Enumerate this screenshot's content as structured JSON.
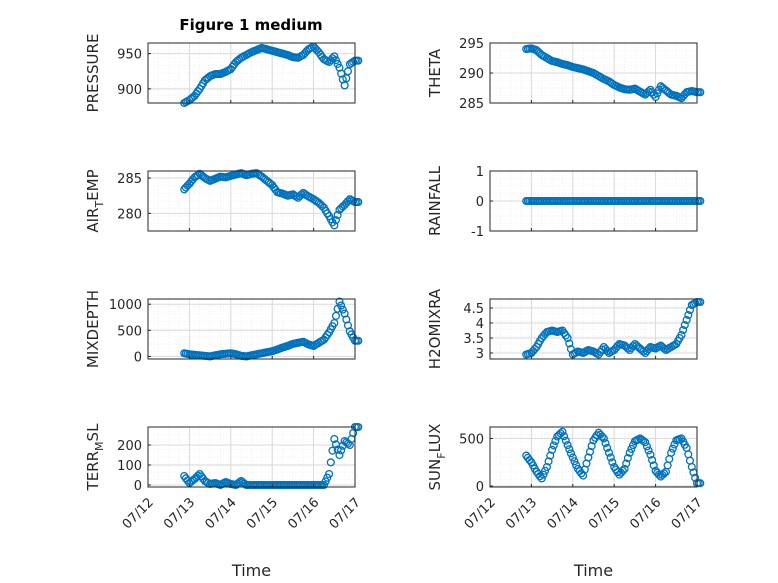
{
  "figure": {
    "title": "Figure 1 medium"
  },
  "colors": {
    "marker": "#0072BD",
    "axis": "#262626",
    "grid": "#d9d9d9",
    "minorgrid": "#ececec"
  },
  "chart_data": [
    {
      "id": "pressure",
      "type": "scatter",
      "marker": "circle-open",
      "title": "Figure 1 medium",
      "xlabel": "",
      "ylabel": "PRESSURE",
      "xlim": [
        "07/12",
        "07/17"
      ],
      "ylim": [
        880,
        965
      ],
      "yticks": [
        900,
        950
      ],
      "xticks": [
        "07/12",
        "07/13",
        "07/14",
        "07/15",
        "07/16",
        "07/17"
      ],
      "x": [
        "07/12 21:00",
        "07/13 00:00",
        "07/13 03:00",
        "07/13 06:00",
        "07/13 09:00",
        "07/13 12:00",
        "07/13 15:00",
        "07/13 18:00",
        "07/13 21:00",
        "07/14 00:00",
        "07/14 03:00",
        "07/14 06:00",
        "07/14 09:00",
        "07/14 12:00",
        "07/14 15:00",
        "07/14 18:00",
        "07/14 21:00",
        "07/15 00:00",
        "07/15 03:00",
        "07/15 06:00",
        "07/15 09:00",
        "07/15 12:00",
        "07/15 15:00",
        "07/15 18:00",
        "07/15 21:00",
        "07/16 00:00",
        "07/16 03:00",
        "07/16 06:00",
        "07/16 09:00",
        "07/16 12:00",
        "07/16 15:00",
        "07/16 18:00",
        "07/16 21:00",
        "07/17 00:00"
      ],
      "y": [
        880,
        884,
        890,
        900,
        912,
        918,
        921,
        921,
        924,
        928,
        938,
        944,
        948,
        952,
        955,
        958,
        956,
        954,
        952,
        950,
        948,
        945,
        944,
        948,
        956,
        960,
        952,
        942,
        938,
        946,
        930,
        905,
        935,
        940
      ]
    },
    {
      "id": "theta",
      "type": "scatter",
      "marker": "circle-open",
      "xlabel": "",
      "ylabel": "THETA",
      "xlim": [
        "07/12",
        "07/17"
      ],
      "ylim": [
        285,
        295
      ],
      "yticks": [
        285,
        290,
        295
      ],
      "xticks": [
        "07/12",
        "07/13",
        "07/14",
        "07/15",
        "07/16",
        "07/17"
      ],
      "x": [
        "07/12 21:00",
        "07/13 00:00",
        "07/13 03:00",
        "07/13 06:00",
        "07/13 09:00",
        "07/13 12:00",
        "07/13 15:00",
        "07/13 18:00",
        "07/13 21:00",
        "07/14 00:00",
        "07/14 03:00",
        "07/14 06:00",
        "07/14 09:00",
        "07/14 12:00",
        "07/14 15:00",
        "07/14 18:00",
        "07/14 21:00",
        "07/15 00:00",
        "07/15 03:00",
        "07/15 06:00",
        "07/15 09:00",
        "07/15 12:00",
        "07/15 15:00",
        "07/15 18:00",
        "07/15 21:00",
        "07/16 00:00",
        "07/16 03:00",
        "07/16 06:00",
        "07/16 09:00",
        "07/16 12:00",
        "07/16 15:00",
        "07/16 18:00",
        "07/16 21:00",
        "07/17 00:00"
      ],
      "y": [
        294,
        294.1,
        293.8,
        293,
        292.5,
        292,
        291.8,
        291.5,
        291.3,
        291,
        290.8,
        290.6,
        290.3,
        290,
        289.5,
        289,
        288.6,
        288,
        287.6,
        287.3,
        287.2,
        287.4,
        286.9,
        286.4,
        287.2,
        286,
        287.8,
        287.1,
        286.4,
        286.2,
        285.8,
        286.8,
        287,
        286.8
      ]
    },
    {
      "id": "airtemp",
      "type": "scatter",
      "marker": "circle-open",
      "xlabel": "",
      "ylabel": "AIR_TEMP",
      "ylabel_parts": {
        "main": "AIR",
        "sub": "T",
        "rest": "EMP"
      },
      "xlim": [
        "07/12",
        "07/17"
      ],
      "ylim": [
        277.5,
        286
      ],
      "yticks": [
        280,
        285
      ],
      "xticks": [
        "07/12",
        "07/13",
        "07/14",
        "07/15",
        "07/16",
        "07/17"
      ],
      "x": [
        "07/12 21:00",
        "07/13 00:00",
        "07/13 03:00",
        "07/13 06:00",
        "07/13 09:00",
        "07/13 12:00",
        "07/13 15:00",
        "07/13 18:00",
        "07/13 21:00",
        "07/14 00:00",
        "07/14 03:00",
        "07/14 06:00",
        "07/14 09:00",
        "07/14 12:00",
        "07/14 15:00",
        "07/14 18:00",
        "07/14 21:00",
        "07/15 00:00",
        "07/15 03:00",
        "07/15 06:00",
        "07/15 09:00",
        "07/15 12:00",
        "07/15 15:00",
        "07/15 18:00",
        "07/15 21:00",
        "07/16 00:00",
        "07/16 03:00",
        "07/16 06:00",
        "07/16 09:00",
        "07/16 12:00",
        "07/16 15:00",
        "07/16 18:00",
        "07/16 21:00",
        "07/17 00:00"
      ],
      "y": [
        283.4,
        284.2,
        285.1,
        285.6,
        285.0,
        284.6,
        284.9,
        285.2,
        285.1,
        285.3,
        285.5,
        285.7,
        285.4,
        285.6,
        285.7,
        285.2,
        284.6,
        284.0,
        283.0,
        282.8,
        282.5,
        282.7,
        282.2,
        282.9,
        282.4,
        282.0,
        281.5,
        280.8,
        279.6,
        278.3,
        280.5,
        281.2,
        282.0,
        281.6
      ]
    },
    {
      "id": "rainfall",
      "type": "scatter",
      "marker": "circle-open",
      "xlabel": "",
      "ylabel": "RAINFALL",
      "xlim": [
        "07/12",
        "07/17"
      ],
      "ylim": [
        -1,
        1
      ],
      "yticks": [
        -1,
        0,
        1
      ],
      "xticks": [
        "07/12",
        "07/13",
        "07/14",
        "07/15",
        "07/16",
        "07/17"
      ],
      "x": [
        "07/12 21:00",
        "07/13 00:00",
        "07/13 03:00",
        "07/13 06:00",
        "07/13 09:00",
        "07/13 12:00",
        "07/13 15:00",
        "07/13 18:00",
        "07/13 21:00",
        "07/14 00:00",
        "07/14 03:00",
        "07/14 06:00",
        "07/14 09:00",
        "07/14 12:00",
        "07/14 15:00",
        "07/14 18:00",
        "07/14 21:00",
        "07/15 00:00",
        "07/15 03:00",
        "07/15 06:00",
        "07/15 09:00",
        "07/15 12:00",
        "07/15 15:00",
        "07/15 18:00",
        "07/15 21:00",
        "07/16 00:00",
        "07/16 03:00",
        "07/16 06:00",
        "07/16 09:00",
        "07/16 12:00",
        "07/16 15:00",
        "07/16 18:00",
        "07/16 21:00",
        "07/17 00:00"
      ],
      "y": [
        0,
        0,
        0,
        0,
        0,
        0,
        0,
        0,
        0,
        0,
        0,
        0,
        0,
        0,
        0,
        0,
        0,
        0,
        0,
        0,
        0,
        0,
        0,
        0,
        0,
        0,
        0,
        0,
        0,
        0,
        0,
        0,
        0,
        0
      ]
    },
    {
      "id": "mixdepth",
      "type": "scatter",
      "marker": "circle-open",
      "xlabel": "",
      "ylabel": "MIXDEPTH",
      "xlim": [
        "07/12",
        "07/17"
      ],
      "ylim": [
        -50,
        1100
      ],
      "yticks": [
        0,
        500,
        1000
      ],
      "xticks": [
        "07/12",
        "07/13",
        "07/14",
        "07/15",
        "07/16",
        "07/17"
      ],
      "x": [
        "07/12 21:00",
        "07/13 00:00",
        "07/13 03:00",
        "07/13 06:00",
        "07/13 09:00",
        "07/13 12:00",
        "07/13 15:00",
        "07/13 18:00",
        "07/13 21:00",
        "07/14 00:00",
        "07/14 03:00",
        "07/14 06:00",
        "07/14 09:00",
        "07/14 12:00",
        "07/14 15:00",
        "07/14 18:00",
        "07/14 21:00",
        "07/15 00:00",
        "07/15 03:00",
        "07/15 06:00",
        "07/15 09:00",
        "07/15 12:00",
        "07/15 15:00",
        "07/15 18:00",
        "07/15 21:00",
        "07/16 00:00",
        "07/16 03:00",
        "07/16 06:00",
        "07/16 09:00",
        "07/16 12:00",
        "07/16 15:00",
        "07/16 18:00",
        "07/16 21:00",
        "07/17 00:00"
      ],
      "y": [
        60,
        40,
        30,
        20,
        10,
        0,
        20,
        40,
        50,
        60,
        40,
        10,
        0,
        20,
        40,
        60,
        80,
        100,
        130,
        170,
        200,
        240,
        260,
        280,
        230,
        200,
        260,
        320,
        460,
        640,
        1050,
        820,
        480,
        300
      ]
    },
    {
      "id": "h2omixra",
      "type": "scatter",
      "marker": "circle-open",
      "xlabel": "",
      "ylabel": "H2OMIXRA",
      "xlim": [
        "07/12",
        "07/17"
      ],
      "ylim": [
        2.8,
        4.8
      ],
      "yticks": [
        3,
        3.5,
        4,
        4.5
      ],
      "xticks": [
        "07/12",
        "07/13",
        "07/14",
        "07/15",
        "07/16",
        "07/17"
      ],
      "x": [
        "07/12 21:00",
        "07/13 00:00",
        "07/13 03:00",
        "07/13 06:00",
        "07/13 09:00",
        "07/13 12:00",
        "07/13 15:00",
        "07/13 18:00",
        "07/13 21:00",
        "07/14 00:00",
        "07/14 03:00",
        "07/14 06:00",
        "07/14 09:00",
        "07/14 12:00",
        "07/14 15:00",
        "07/14 18:00",
        "07/14 21:00",
        "07/15 00:00",
        "07/15 03:00",
        "07/15 06:00",
        "07/15 09:00",
        "07/15 12:00",
        "07/15 15:00",
        "07/15 18:00",
        "07/15 21:00",
        "07/16 00:00",
        "07/16 03:00",
        "07/16 06:00",
        "07/16 09:00",
        "07/16 12:00",
        "07/16 15:00",
        "07/16 18:00",
        "07/16 21:00",
        "07/17 00:00"
      ],
      "y": [
        2.95,
        3.0,
        3.2,
        3.5,
        3.7,
        3.75,
        3.7,
        3.75,
        3.5,
        2.95,
        3.05,
        3.0,
        3.1,
        3.05,
        2.95,
        3.2,
        3.0,
        3.1,
        3.3,
        3.25,
        3.1,
        3.3,
        3.15,
        3.0,
        3.2,
        3.15,
        3.25,
        3.1,
        3.2,
        3.3,
        3.6,
        4.1,
        4.6,
        4.7
      ]
    },
    {
      "id": "terrmsl",
      "type": "scatter",
      "marker": "circle-open",
      "xlabel": "Time",
      "ylabel": "TERR_MSL",
      "ylabel_parts": {
        "main": "TERR",
        "sub": "M",
        "rest": "SL"
      },
      "xlim": [
        "07/12",
        "07/17"
      ],
      "ylim": [
        -10,
        290
      ],
      "yticks": [
        0,
        100,
        200
      ],
      "xticks": [
        "07/12",
        "07/13",
        "07/14",
        "07/15",
        "07/16",
        "07/17"
      ],
      "x": [
        "07/12 21:00",
        "07/13 00:00",
        "07/13 03:00",
        "07/13 06:00",
        "07/13 09:00",
        "07/13 12:00",
        "07/13 15:00",
        "07/13 18:00",
        "07/13 21:00",
        "07/14 00:00",
        "07/14 03:00",
        "07/14 06:00",
        "07/14 09:00",
        "07/14 12:00",
        "07/14 15:00",
        "07/14 18:00",
        "07/14 21:00",
        "07/15 00:00",
        "07/15 03:00",
        "07/15 06:00",
        "07/15 09:00",
        "07/15 12:00",
        "07/15 15:00",
        "07/15 18:00",
        "07/15 21:00",
        "07/16 00:00",
        "07/16 03:00",
        "07/16 06:00",
        "07/16 09:00",
        "07/16 12:00",
        "07/16 15:00",
        "07/16 18:00",
        "07/16 21:00",
        "07/17 00:00"
      ],
      "y": [
        45,
        10,
        30,
        55,
        20,
        5,
        10,
        0,
        15,
        5,
        0,
        20,
        0,
        0,
        0,
        0,
        0,
        0,
        0,
        0,
        0,
        0,
        0,
        0,
        0,
        0,
        0,
        0,
        55,
        230,
        150,
        220,
        200,
        290
      ]
    },
    {
      "id": "sunflux",
      "type": "scatter",
      "marker": "circle-open",
      "xlabel": "Time",
      "ylabel": "SUN_FLUX",
      "ylabel_parts": {
        "main": "SUN",
        "sub": "F",
        "rest": "LUX"
      },
      "xlim": [
        "07/12",
        "07/17"
      ],
      "ylim": [
        -10,
        620
      ],
      "yticks": [
        0,
        500
      ],
      "xticks": [
        "07/12",
        "07/13",
        "07/14",
        "07/15",
        "07/16",
        "07/17"
      ],
      "x": [
        "07/12 21:00",
        "07/13 00:00",
        "07/13 03:00",
        "07/13 06:00",
        "07/13 09:00",
        "07/13 12:00",
        "07/13 15:00",
        "07/13 18:00",
        "07/13 21:00",
        "07/14 00:00",
        "07/14 03:00",
        "07/14 06:00",
        "07/14 09:00",
        "07/14 12:00",
        "07/14 15:00",
        "07/14 18:00",
        "07/14 21:00",
        "07/15 00:00",
        "07/15 03:00",
        "07/15 06:00",
        "07/15 09:00",
        "07/15 12:00",
        "07/15 15:00",
        "07/15 18:00",
        "07/15 21:00",
        "07/16 00:00",
        "07/16 03:00",
        "07/16 06:00",
        "07/16 09:00",
        "07/16 12:00",
        "07/16 15:00",
        "07/16 18:00",
        "07/16 21:00",
        "07/17 00:00"
      ],
      "y": [
        320,
        250,
        150,
        80,
        200,
        380,
        520,
        570,
        430,
        300,
        180,
        110,
        300,
        480,
        560,
        500,
        350,
        200,
        120,
        180,
        350,
        470,
        500,
        460,
        330,
        160,
        100,
        150,
        350,
        480,
        500,
        400,
        200,
        30
      ]
    }
  ]
}
